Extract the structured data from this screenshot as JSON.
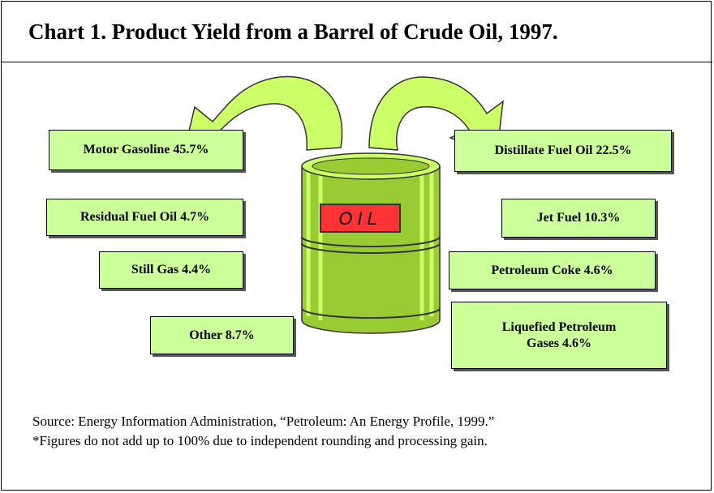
{
  "header": {
    "title": "Chart 1. Product Yield from a Barrel of Crude Oil, 1997."
  },
  "barrel": {
    "label": "OIL"
  },
  "nodes": [
    {
      "label": "Motor Gasoline 45.7%"
    },
    {
      "label": "Residual Fuel Oil 4.7%"
    },
    {
      "label": "Still Gas 4.4%"
    },
    {
      "label": "Other 8.7%"
    },
    {
      "label": "Distillate Fuel Oil 22.5%"
    },
    {
      "label": "Jet Fuel 10.3%"
    },
    {
      "label": "Petroleum Coke 4.6%"
    },
    {
      "label": "Liquefied Petroleum Gases 4.6%"
    }
  ],
  "footer": {
    "source": "Source: Energy Information Administration, “Petroleum: An Energy Profile, 1999.”",
    "note": "*Figures do not add up to 100% due to independent rounding and processing gain."
  }
}
